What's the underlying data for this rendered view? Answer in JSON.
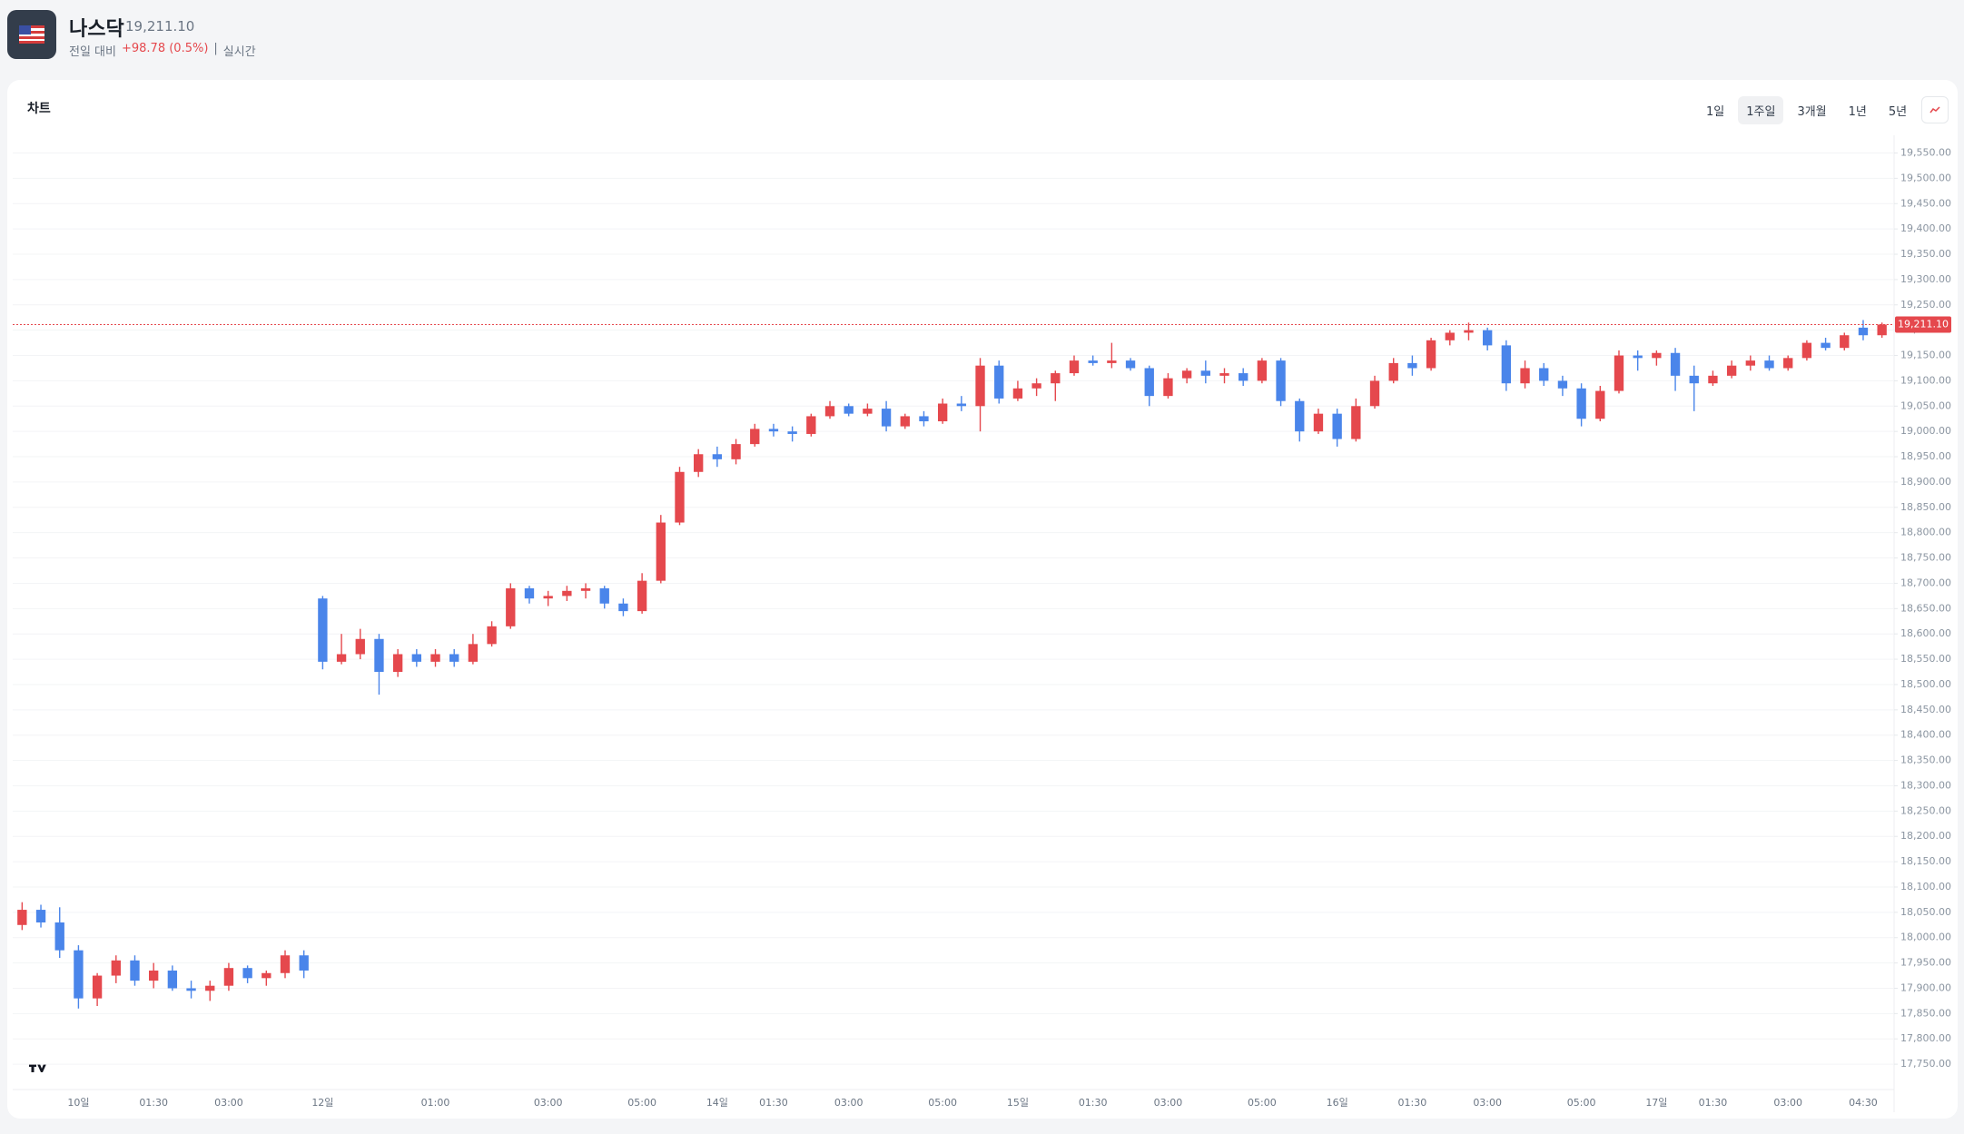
{
  "header": {
    "title": "나스닥",
    "price": "19,211.10",
    "change_label": "전일 대비",
    "change": "+98.78 (0.5%)",
    "separator": "|",
    "realtime": "실시간"
  },
  "card_title": "차트",
  "ranges": [
    "1일",
    "1주일",
    "3개월",
    "1년",
    "5년"
  ],
  "active_range": 1,
  "chart_data": {
    "type": "candlestick",
    "up_color": "#e5484d",
    "down_color": "#4a85ea",
    "grid": true,
    "categories": [
      null,
      null,
      null,
      "10일",
      null,
      null,
      null,
      "01:30",
      null,
      null,
      null,
      "03:00",
      null,
      null,
      null,
      null,
      "12일",
      null,
      null,
      null,
      null,
      null,
      "01:00",
      null,
      null,
      null,
      null,
      null,
      "03:00",
      null,
      null,
      null,
      null,
      "05:00",
      null,
      null,
      null,
      "14일",
      null,
      null,
      "01:30",
      null,
      null,
      null,
      "03:00",
      null,
      null,
      null,
      null,
      "05:00",
      null,
      null,
      null,
      "15일",
      null,
      null,
      null,
      "01:30",
      null,
      null,
      null,
      "03:00",
      null,
      null,
      null,
      null,
      "05:00",
      null,
      null,
      null,
      "16일",
      null,
      null,
      null,
      "01:30",
      null,
      null,
      null,
      "03:00",
      null,
      null,
      null,
      null,
      "05:00",
      null,
      null,
      null,
      "17일",
      null,
      null,
      "01:30",
      null,
      null,
      null,
      "03:00",
      null,
      null,
      null,
      "04:30",
      null
    ],
    "open": [
      18025,
      18055,
      18030,
      17975,
      17880,
      17925,
      17955,
      17915,
      17935,
      17900,
      17895,
      17905,
      17940,
      17920,
      17930,
      17965,
      18670,
      18545,
      18560,
      18590,
      18525,
      18560,
      18545,
      18560,
      18545,
      18580,
      18615,
      18690,
      18670,
      18675,
      18685,
      18690,
      18660,
      18645,
      18705,
      18820,
      18920,
      18955,
      18945,
      18975,
      19005,
      19000,
      18995,
      19030,
      19050,
      19035,
      19045,
      19010,
      19030,
      19020,
      19055,
      19050,
      19130,
      19065,
      19085,
      19095,
      19115,
      19140,
      19135,
      19140,
      19125,
      19070,
      19105,
      19120,
      19110,
      19115,
      19100,
      19140,
      19060,
      19000,
      19035,
      18985,
      19050,
      19100,
      19135,
      19125,
      19180,
      19195,
      19200,
      19170,
      19095,
      19125,
      19100,
      19085,
      19025,
      19080,
      19150,
      19145,
      19155,
      19110,
      19095,
      19110,
      19130,
      19140,
      19125,
      19145,
      19175,
      19165,
      19205,
      19190
    ],
    "high": [
      18070,
      18065,
      18060,
      17985,
      17930,
      17965,
      17965,
      17950,
      17945,
      17915,
      17915,
      17950,
      17945,
      17935,
      17975,
      17975,
      18675,
      18600,
      18610,
      18600,
      18570,
      18570,
      18570,
      18570,
      18600,
      18625,
      18700,
      18695,
      18685,
      18695,
      18700,
      18695,
      18670,
      18720,
      18835,
      18930,
      18965,
      18970,
      18985,
      19015,
      19015,
      19010,
      19035,
      19060,
      19055,
      19055,
      19060,
      19035,
      19040,
      19065,
      19070,
      19145,
      19140,
      19100,
      19105,
      19120,
      19150,
      19150,
      19175,
      19145,
      19130,
      19115,
      19125,
      19140,
      19125,
      19125,
      19145,
      19145,
      19065,
      19045,
      19045,
      19065,
      19110,
      19145,
      19150,
      19185,
      19200,
      19215,
      19205,
      19180,
      19140,
      19135,
      19110,
      19095,
      19090,
      19160,
      19160,
      19160,
      19165,
      19130,
      19120,
      19140,
      19150,
      19150,
      19150,
      19180,
      19185,
      19195,
      19220,
      19215
    ],
    "low": [
      18015,
      18020,
      17960,
      17860,
      17865,
      17910,
      17905,
      17900,
      17895,
      17880,
      17875,
      17895,
      17910,
      17905,
      17920,
      17920,
      18530,
      18540,
      18550,
      18480,
      18515,
      18535,
      18535,
      18535,
      18540,
      18575,
      18610,
      18660,
      18655,
      18665,
      18670,
      18650,
      18635,
      18640,
      18700,
      18815,
      18910,
      18930,
      18935,
      18970,
      18990,
      18980,
      18990,
      19025,
      19030,
      19030,
      19000,
      19005,
      19010,
      19015,
      19040,
      19000,
      19055,
      19060,
      19070,
      19060,
      19110,
      19130,
      19125,
      19120,
      19050,
      19065,
      19095,
      19095,
      19095,
      19090,
      19095,
      19050,
      18980,
      18995,
      18970,
      18980,
      19045,
      19095,
      19110,
      19120,
      19170,
      19180,
      19160,
      19080,
      19085,
      19090,
      19070,
      19010,
      19020,
      19075,
      19120,
      19130,
      19080,
      19040,
      19090,
      19105,
      19120,
      19120,
      19120,
      19140,
      19160,
      19160,
      19180,
      19185
    ],
    "close": [
      18055,
      18030,
      17975,
      17880,
      17925,
      17955,
      17915,
      17935,
      17900,
      17895,
      17905,
      17940,
      17920,
      17930,
      17965,
      17935,
      18545,
      18560,
      18590,
      18525,
      18560,
      18545,
      18560,
      18545,
      18580,
      18615,
      18690,
      18670,
      18675,
      18685,
      18690,
      18660,
      18645,
      18705,
      18820,
      18920,
      18955,
      18945,
      18975,
      19005,
      19000,
      18995,
      19030,
      19050,
      19035,
      19045,
      19010,
      19030,
      19020,
      19055,
      19050,
      19130,
      19065,
      19085,
      19095,
      19115,
      19140,
      19135,
      19140,
      19125,
      19070,
      19105,
      19120,
      19110,
      19115,
      19100,
      19140,
      19060,
      19000,
      19035,
      18985,
      19050,
      19100,
      19135,
      19125,
      19180,
      19195,
      19200,
      19170,
      19095,
      19125,
      19100,
      19085,
      19025,
      19080,
      19150,
      19145,
      19155,
      19110,
      19095,
      19110,
      19130,
      19140,
      19125,
      19145,
      19175,
      19165,
      19190,
      19190,
      19211.1
    ],
    "last_price": {
      "value": 19211.1,
      "label": "19,211.10"
    },
    "last_color": "#e5484d",
    "ylim": [
      17700,
      19585
    ],
    "yticks": [
      {
        "value": 17750,
        "label": "17,750.00"
      },
      {
        "value": 17800,
        "label": "17,800.00"
      },
      {
        "value": 17850,
        "label": "17,850.00"
      },
      {
        "value": 17900,
        "label": "17,900.00"
      },
      {
        "value": 17950,
        "label": "17,950.00"
      },
      {
        "value": 18000,
        "label": "18,000.00"
      },
      {
        "value": 18050,
        "label": "18,050.00"
      },
      {
        "value": 18100,
        "label": "18,100.00"
      },
      {
        "value": 18150,
        "label": "18,150.00"
      },
      {
        "value": 18200,
        "label": "18,200.00"
      },
      {
        "value": 18250,
        "label": "18,250.00"
      },
      {
        "value": 18300,
        "label": "18,300.00"
      },
      {
        "value": 18350,
        "label": "18,350.00"
      },
      {
        "value": 18400,
        "label": "18,400.00"
      },
      {
        "value": 18450,
        "label": "18,450.00"
      },
      {
        "value": 18500,
        "label": "18,500.00"
      },
      {
        "value": 18550,
        "label": "18,550.00"
      },
      {
        "value": 18600,
        "label": "18,600.00"
      },
      {
        "value": 18650,
        "label": "18,650.00"
      },
      {
        "value": 18700,
        "label": "18,700.00"
      },
      {
        "value": 18750,
        "label": "18,750.00"
      },
      {
        "value": 18800,
        "label": "18,800.00"
      },
      {
        "value": 18850,
        "label": "18,850.00"
      },
      {
        "value": 18900,
        "label": "18,900.00"
      },
      {
        "value": 18950,
        "label": "18,950.00"
      },
      {
        "value": 19000,
        "label": "19,000.00"
      },
      {
        "value": 19050,
        "label": "19,050.00"
      },
      {
        "value": 19100,
        "label": "19,100.00"
      },
      {
        "value": 19150,
        "label": "19,150.00"
      },
      {
        "value": 19200,
        "label": "19,200.00"
      },
      {
        "value": 19250,
        "label": "19,250.00"
      },
      {
        "value": 19300,
        "label": "19,300.00"
      },
      {
        "value": 19350,
        "label": "19,350.00"
      },
      {
        "value": 19400,
        "label": "19,400.00"
      },
      {
        "value": 19450,
        "label": "19,450.00"
      },
      {
        "value": 19500,
        "label": "19,500.00"
      },
      {
        "value": 19550,
        "label": "19,550.00"
      }
    ]
  }
}
